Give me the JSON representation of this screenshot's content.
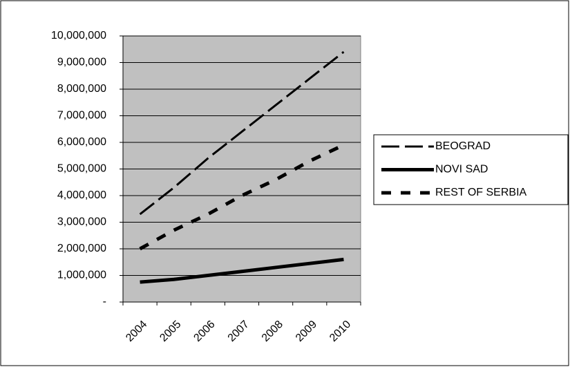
{
  "chart_data": {
    "type": "line",
    "categories": [
      "2004",
      "2005",
      "2006",
      "2007",
      "2008",
      "2009",
      "2010"
    ],
    "series": [
      {
        "name": "BEOGRAD",
        "color": "#000000",
        "line_style": "long-dash",
        "values": [
          3300000,
          4300000,
          5400000,
          6400000,
          7400000,
          8400000,
          9400000
        ]
      },
      {
        "name": "NOVI SAD",
        "color": "#000000",
        "line_style": "solid",
        "values": [
          750000,
          850000,
          1000000,
          1150000,
          1300000,
          1450000,
          1600000
        ]
      },
      {
        "name": "REST OF SERBIA",
        "color": "#000000",
        "line_style": "dash",
        "values": [
          2000000,
          2700000,
          3300000,
          4000000,
          4600000,
          5300000,
          5900000
        ]
      }
    ],
    "ylim": [
      0,
      10000000
    ],
    "yticks": [
      {
        "value": 0,
        "label": "-"
      },
      {
        "value": 1000000,
        "label": "1,000,000"
      },
      {
        "value": 2000000,
        "label": "2,000,000"
      },
      {
        "value": 3000000,
        "label": "3,000,000"
      },
      {
        "value": 4000000,
        "label": "4,000,000"
      },
      {
        "value": 5000000,
        "label": "5,000,000"
      },
      {
        "value": 6000000,
        "label": "6,000,000"
      },
      {
        "value": 7000000,
        "label": "7,000,000"
      },
      {
        "value": 8000000,
        "label": "8,000,000"
      },
      {
        "value": 9000000,
        "label": "9,000,000"
      },
      {
        "value": 10000000,
        "label": "10,000,000"
      }
    ],
    "grid": true,
    "plot_background": "#c0c0c0",
    "legend": "right"
  }
}
